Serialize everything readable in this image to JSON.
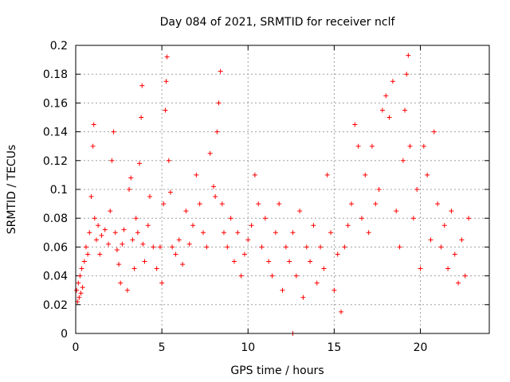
{
  "chart_data": {
    "type": "scatter",
    "title": "Day 084 of 2021, SRMTID for receiver nclf",
    "xlabel": "GPS time / hours",
    "ylabel": "SRMTID / TECUs",
    "xlim": [
      0,
      24
    ],
    "ylim": [
      0,
      0.2
    ],
    "x_ticks": [
      "0",
      "5",
      "10",
      "15",
      "20"
    ],
    "y_ticks": [
      "0",
      "0.02",
      "0.04",
      "0.06",
      "0.08",
      "0.1",
      "0.12",
      "0.14",
      "0.16",
      "0.18",
      "0.2"
    ],
    "grid": true,
    "marker": "+",
    "color": "#ff0000",
    "series": [
      {
        "points": [
          [
            0.05,
            0.03
          ],
          [
            0.1,
            0.022
          ],
          [
            0.15,
            0.035
          ],
          [
            0.2,
            0.025
          ],
          [
            0.25,
            0.04
          ],
          [
            0.3,
            0.028
          ],
          [
            0.35,
            0.045
          ],
          [
            0.4,
            0.032
          ],
          [
            0.5,
            0.05
          ],
          [
            0.6,
            0.06
          ],
          [
            0.7,
            0.055
          ],
          [
            0.8,
            0.07
          ],
          [
            0.9,
            0.095
          ],
          [
            1.0,
            0.13
          ],
          [
            1.05,
            0.145
          ],
          [
            1.1,
            0.08
          ],
          [
            1.2,
            0.065
          ],
          [
            1.3,
            0.075
          ],
          [
            1.4,
            0.055
          ],
          [
            1.5,
            0.068
          ],
          [
            1.7,
            0.072
          ],
          [
            1.9,
            0.062
          ],
          [
            2.0,
            0.085
          ],
          [
            2.1,
            0.12
          ],
          [
            2.2,
            0.14
          ],
          [
            2.3,
            0.07
          ],
          [
            2.4,
            0.058
          ],
          [
            2.5,
            0.048
          ],
          [
            2.6,
            0.035
          ],
          [
            2.7,
            0.062
          ],
          [
            2.8,
            0.072
          ],
          [
            3.0,
            0.03
          ],
          [
            3.1,
            0.1
          ],
          [
            3.2,
            0.108
          ],
          [
            3.3,
            0.065
          ],
          [
            3.4,
            0.045
          ],
          [
            3.5,
            0.08
          ],
          [
            3.6,
            0.07
          ],
          [
            3.7,
            0.118
          ],
          [
            3.8,
            0.15
          ],
          [
            3.85,
            0.172
          ],
          [
            3.9,
            0.062
          ],
          [
            4.0,
            0.05
          ],
          [
            4.2,
            0.075
          ],
          [
            4.3,
            0.095
          ],
          [
            4.5,
            0.06
          ],
          [
            4.7,
            0.045
          ],
          [
            4.9,
            0.06
          ],
          [
            5.0,
            0.035
          ],
          [
            5.1,
            0.09
          ],
          [
            5.2,
            0.155
          ],
          [
            5.25,
            0.175
          ],
          [
            5.3,
            0.192
          ],
          [
            5.4,
            0.12
          ],
          [
            5.5,
            0.098
          ],
          [
            5.6,
            0.06
          ],
          [
            5.8,
            0.055
          ],
          [
            6.0,
            0.065
          ],
          [
            6.2,
            0.048
          ],
          [
            6.4,
            0.085
          ],
          [
            6.6,
            0.062
          ],
          [
            6.8,
            0.075
          ],
          [
            7.0,
            0.11
          ],
          [
            7.2,
            0.09
          ],
          [
            7.4,
            0.07
          ],
          [
            7.6,
            0.06
          ],
          [
            7.8,
            0.125
          ],
          [
            8.0,
            0.102
          ],
          [
            8.1,
            0.095
          ],
          [
            8.2,
            0.14
          ],
          [
            8.3,
            0.16
          ],
          [
            8.4,
            0.182
          ],
          [
            8.5,
            0.09
          ],
          [
            8.6,
            0.07
          ],
          [
            8.8,
            0.06
          ],
          [
            9.0,
            0.08
          ],
          [
            9.2,
            0.05
          ],
          [
            9.4,
            0.07
          ],
          [
            9.6,
            0.04
          ],
          [
            9.8,
            0.055
          ],
          [
            10.0,
            0.065
          ],
          [
            10.2,
            0.075
          ],
          [
            10.4,
            0.11
          ],
          [
            10.6,
            0.09
          ],
          [
            10.8,
            0.06
          ],
          [
            11.0,
            0.08
          ],
          [
            11.2,
            0.05
          ],
          [
            11.4,
            0.04
          ],
          [
            11.6,
            0.07
          ],
          [
            11.8,
            0.09
          ],
          [
            12.0,
            0.03
          ],
          [
            12.2,
            0.06
          ],
          [
            12.4,
            0.05
          ],
          [
            12.6,
            0.07
          ],
          [
            12.8,
            0.04
          ],
          [
            13.0,
            0.085
          ],
          [
            13.2,
            0.025
          ],
          [
            13.4,
            0.06
          ],
          [
            13.6,
            0.05
          ],
          [
            13.8,
            0.075
          ],
          [
            14.0,
            0.035
          ],
          [
            14.2,
            0.06
          ],
          [
            14.4,
            0.045
          ],
          [
            14.6,
            0.11
          ],
          [
            14.8,
            0.07
          ],
          [
            15.0,
            0.03
          ],
          [
            15.2,
            0.055
          ],
          [
            15.4,
            0.015
          ],
          [
            15.6,
            0.06
          ],
          [
            15.8,
            0.075
          ],
          [
            16.0,
            0.09
          ],
          [
            16.2,
            0.145
          ],
          [
            16.4,
            0.13
          ],
          [
            16.6,
            0.08
          ],
          [
            16.8,
            0.11
          ],
          [
            17.0,
            0.07
          ],
          [
            17.2,
            0.13
          ],
          [
            17.4,
            0.09
          ],
          [
            17.6,
            0.1
          ],
          [
            17.8,
            0.155
          ],
          [
            18.0,
            0.165
          ],
          [
            18.2,
            0.15
          ],
          [
            18.4,
            0.175
          ],
          [
            18.6,
            0.085
          ],
          [
            18.8,
            0.06
          ],
          [
            19.0,
            0.12
          ],
          [
            19.1,
            0.155
          ],
          [
            19.2,
            0.18
          ],
          [
            19.3,
            0.193
          ],
          [
            19.4,
            0.13
          ],
          [
            19.6,
            0.08
          ],
          [
            19.8,
            0.1
          ],
          [
            20.0,
            0.045
          ],
          [
            20.2,
            0.13
          ],
          [
            20.4,
            0.11
          ],
          [
            20.6,
            0.065
          ],
          [
            20.8,
            0.14
          ],
          [
            21.0,
            0.09
          ],
          [
            21.2,
            0.06
          ],
          [
            21.4,
            0.075
          ],
          [
            21.6,
            0.045
          ],
          [
            21.8,
            0.085
          ],
          [
            22.0,
            0.055
          ],
          [
            22.2,
            0.035
          ],
          [
            22.4,
            0.065
          ],
          [
            22.6,
            0.04
          ],
          [
            22.8,
            0.08
          ],
          [
            12.6,
            0.0
          ]
        ]
      }
    ]
  }
}
